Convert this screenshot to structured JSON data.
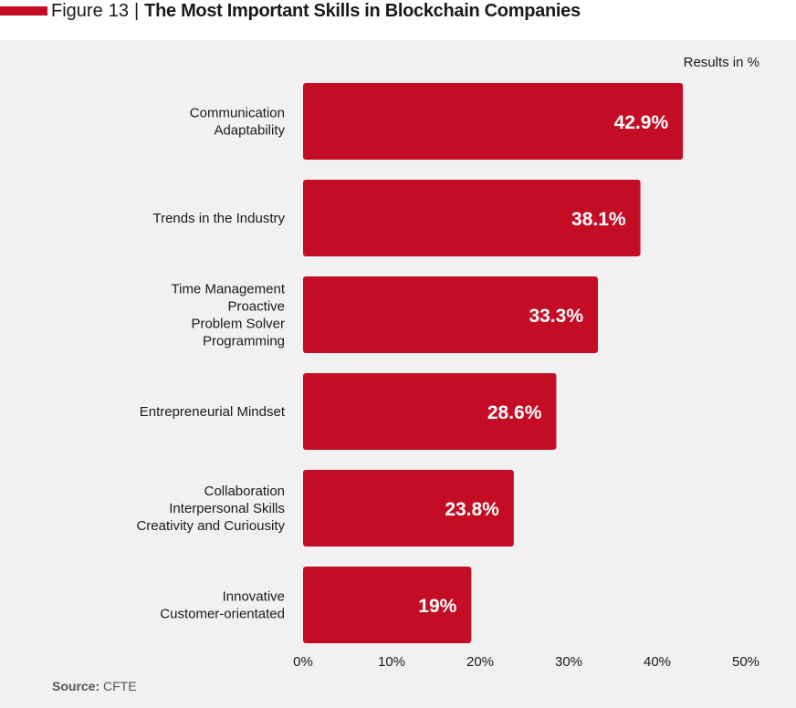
{
  "header": {
    "figure_label": "Figure",
    "figure_number": "13",
    "separator": "|",
    "title": "The Most Important Skills in Blockchain Companies"
  },
  "results_note": "Results in %",
  "source": {
    "label": "Source:",
    "value": "CFTE"
  },
  "colors": {
    "bar": "#c40d24",
    "accent": "#c40d24",
    "panel": "#f2f1f1",
    "text": "#1a1a1a"
  },
  "chart_data": {
    "type": "bar",
    "orientation": "horizontal",
    "categories": [
      [
        "Communication",
        "Adaptability"
      ],
      [
        "Trends in the Industry"
      ],
      [
        "Time Management",
        "Proactive",
        "Problem Solver",
        "Programming"
      ],
      [
        "Entrepreneurial Mindset"
      ],
      [
        "Collaboration",
        "Interpersonal Skills",
        "Creativity and Curiousity"
      ],
      [
        "Innovative",
        "Customer-orientated"
      ]
    ],
    "values": [
      42.9,
      38.1,
      33.3,
      28.6,
      23.8,
      19
    ],
    "value_labels": [
      "42.9%",
      "38.1%",
      "33.3%",
      "28.6%",
      "23.8%",
      "19%"
    ],
    "xlim": [
      0,
      50
    ],
    "xticks": [
      "0%",
      "10%",
      "20%",
      "30%",
      "40%",
      "50%"
    ],
    "grid": false,
    "legend": "none"
  }
}
